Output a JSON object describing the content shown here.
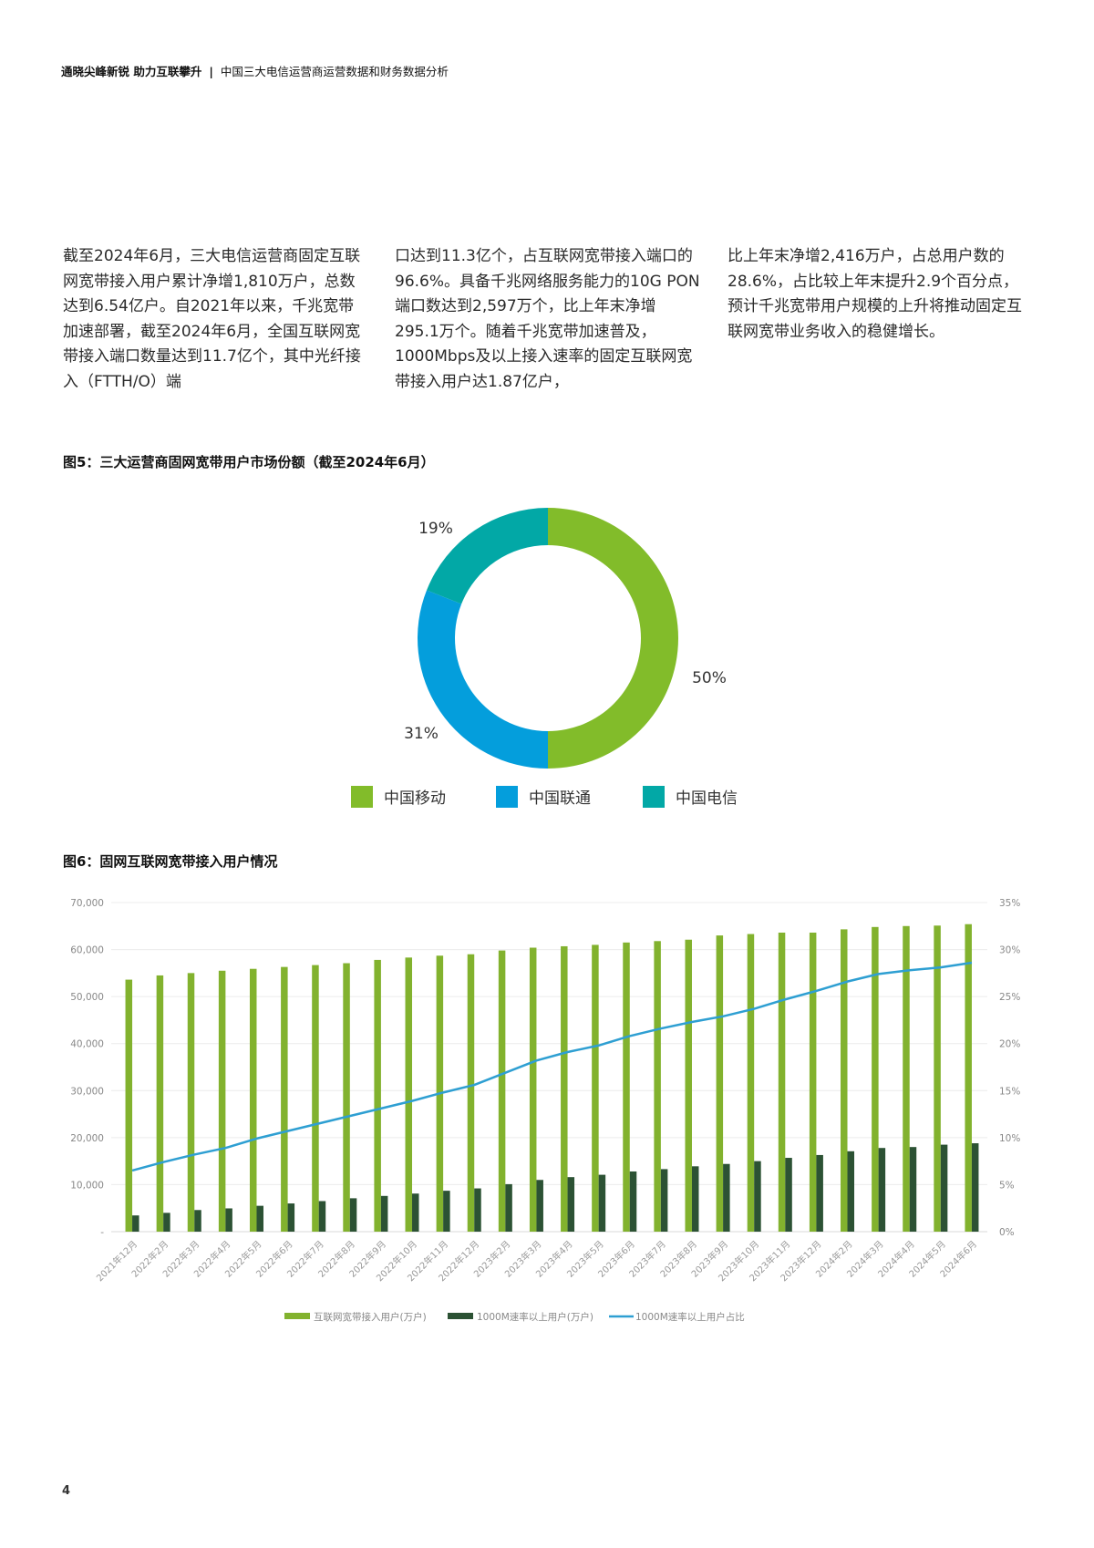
{
  "header": {
    "title_bold": "通晓尖峰新锐 助力互联攀升",
    "separator": "|",
    "title_regular": "中国三大电信运营商运营数据和财务数据分析"
  },
  "body_text": {
    "col1": "截至2024年6月，三大电信运营商固定互联网宽带接入用户累计净增1,810万户，总数达到6.54亿户。自2021年以来，千兆宽带加速部署，截至2024年6月，全国互联网宽带接入端口数量达到11.7亿个，其中光纤接入（FTTH/O）端",
    "col2": "口达到11.3亿个，占互联网宽带接入端口的96.6%。具备千兆网络服务能力的10G PON端口数达到2,597万个，比上年末净增295.1万个。随着千兆宽带加速普及，1000Mbps及以上接入速率的固定互联网宽带接入用户达1.87亿户，",
    "col3": "比上年末净增2,416万户，占总用户数的28.6%，占比较上年末提升2.9个百分点，预计千兆宽带用户规模的上升将推动固定互联网宽带业务收入的稳健增长。"
  },
  "figure5": {
    "title": "图5：三大运营商固网宽带用户市场份额（截至2024年6月）"
  },
  "figure6": {
    "title": "图6：固网互联网宽带接入用户情况"
  },
  "page_number": "4",
  "colors": {
    "mobile_green": "#82BC2A",
    "unicom_blue": "#049EDC",
    "telecom_teal": "#02A8A6",
    "bar_light_green": "#82B22E",
    "bar_dark_green": "#2C5234",
    "line_blue": "#2E9FD2"
  },
  "chart_data": [
    {
      "type": "pie",
      "subtype": "donut",
      "title": "图5：三大运营商固网宽带用户市场份额（截至2024年6月）",
      "categories": [
        "中国移动",
        "中国联通",
        "中国电信"
      ],
      "values": [
        50,
        31,
        19
      ],
      "labels": [
        "50%",
        "31%",
        "19%"
      ],
      "colors": [
        "#82BC2A",
        "#049EDC",
        "#02A8A6"
      ],
      "legend_position": "bottom"
    },
    {
      "type": "bar",
      "subtype": "bar+line dual axis",
      "title": "图6：固网互联网宽带接入用户情况",
      "categories": [
        "2021年12月",
        "2022年2月",
        "2022年3月",
        "2022年4月",
        "2022年5月",
        "2022年6月",
        "2022年7月",
        "2022年8月",
        "2022年9月",
        "2022年10月",
        "2022年11月",
        "2022年12月",
        "2023年2月",
        "2023年3月",
        "2023年4月",
        "2023年5月",
        "2023年6月",
        "2023年7月",
        "2023年8月",
        "2023年9月",
        "2023年10月",
        "2023年11月",
        "2023年12月",
        "2024年2月",
        "2024年3月",
        "2024年4月",
        "2024年5月",
        "2024年6月"
      ],
      "series": [
        {
          "name": "互联网宽带接入用户(万户)",
          "type": "bar",
          "axis": "left",
          "color": "#82B22E",
          "values": [
            53600,
            54500,
            55000,
            55500,
            55900,
            56300,
            56700,
            57100,
            57800,
            58300,
            58700,
            59000,
            59800,
            60400,
            60700,
            61000,
            61500,
            61800,
            62100,
            63000,
            63300,
            63600,
            63600,
            64300,
            64800,
            65000,
            65100,
            65400
          ]
        },
        {
          "name": "1000M速率以上用户(万户)",
          "type": "bar",
          "axis": "left",
          "color": "#2C5234",
          "values": [
            3450,
            4000,
            4600,
            4950,
            5500,
            6000,
            6500,
            7100,
            7600,
            8100,
            8700,
            9200,
            10100,
            11000,
            11600,
            12100,
            12800,
            13300,
            13900,
            14400,
            15000,
            15700,
            16300,
            17100,
            17800,
            18000,
            18500,
            18800
          ]
        },
        {
          "name": "1000M速率以上用户占比",
          "type": "line",
          "axis": "right",
          "color": "#2E9FD2",
          "values": [
            6.5,
            7.4,
            8.2,
            8.9,
            9.9,
            10.7,
            11.5,
            12.3,
            13.1,
            13.9,
            14.8,
            15.6,
            16.9,
            18.2,
            19.1,
            19.8,
            20.8,
            21.6,
            22.3,
            22.9,
            23.7,
            24.7,
            25.6,
            26.6,
            27.4,
            27.8,
            28.1,
            28.6
          ]
        }
      ],
      "y_left": {
        "ticks": [
          "-",
          "10,000",
          "20,000",
          "30,000",
          "40,000",
          "50,000",
          "60,000",
          "70,000"
        ],
        "range": [
          0,
          70000
        ]
      },
      "y_right": {
        "ticks": [
          "0%",
          "5%",
          "10%",
          "15%",
          "20%",
          "25%",
          "30%",
          "35%"
        ],
        "range": [
          0,
          35
        ]
      },
      "grid": true,
      "legend_position": "bottom",
      "xlabel": "",
      "ylabel": ""
    }
  ]
}
